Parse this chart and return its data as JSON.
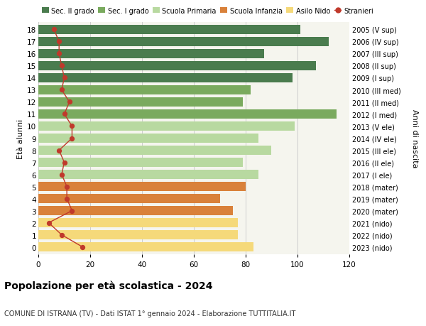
{
  "ages": [
    18,
    17,
    16,
    15,
    14,
    13,
    12,
    11,
    10,
    9,
    8,
    7,
    6,
    5,
    4,
    3,
    2,
    1,
    0
  ],
  "right_labels": [
    "2005 (V sup)",
    "2006 (IV sup)",
    "2007 (III sup)",
    "2008 (II sup)",
    "2009 (I sup)",
    "2010 (III med)",
    "2011 (II med)",
    "2012 (I med)",
    "2013 (V ele)",
    "2014 (IV ele)",
    "2015 (III ele)",
    "2016 (II ele)",
    "2017 (I ele)",
    "2018 (mater)",
    "2019 (mater)",
    "2020 (mater)",
    "2021 (nido)",
    "2022 (nido)",
    "2023 (nido)"
  ],
  "bar_values": [
    101,
    112,
    87,
    107,
    98,
    82,
    79,
    115,
    99,
    85,
    90,
    79,
    85,
    80,
    70,
    75,
    77,
    77,
    83
  ],
  "bar_colors": [
    "#4a7c4e",
    "#4a7c4e",
    "#4a7c4e",
    "#4a7c4e",
    "#4a7c4e",
    "#7aaa5e",
    "#7aaa5e",
    "#7aaa5e",
    "#b8d9a0",
    "#b8d9a0",
    "#b8d9a0",
    "#b8d9a0",
    "#b8d9a0",
    "#d9813a",
    "#d9813a",
    "#d9813a",
    "#f5d97a",
    "#f5d97a",
    "#f5d97a"
  ],
  "stranieri_values": [
    6,
    8,
    8,
    9,
    10,
    9,
    12,
    10,
    13,
    13,
    8,
    10,
    9,
    11,
    11,
    13,
    4,
    9,
    17
  ],
  "legend_labels": [
    "Sec. II grado",
    "Sec. I grado",
    "Scuola Primaria",
    "Scuola Infanzia",
    "Asilo Nido",
    "Stranieri"
  ],
  "legend_colors": [
    "#4a7c4e",
    "#7aaa5e",
    "#b8d9a0",
    "#d9813a",
    "#f5d97a",
    "#c0392b"
  ],
  "title": "Popolazione per età scolastica - 2024",
  "subtitle": "COMUNE DI ISTRANA (TV) - Dati ISTAT 1° gennaio 2024 - Elaborazione TUTTITALIA.IT",
  "ylabel": "Età alunni",
  "ylabel2": "Anni di nascita",
  "xlim": [
    0,
    120
  ],
  "xticks": [
    0,
    20,
    40,
    60,
    80,
    100,
    120
  ],
  "background_color": "#ffffff",
  "plot_bg_color": "#f5f5ee",
  "grid_color": "#cccccc",
  "bar_height": 0.78
}
